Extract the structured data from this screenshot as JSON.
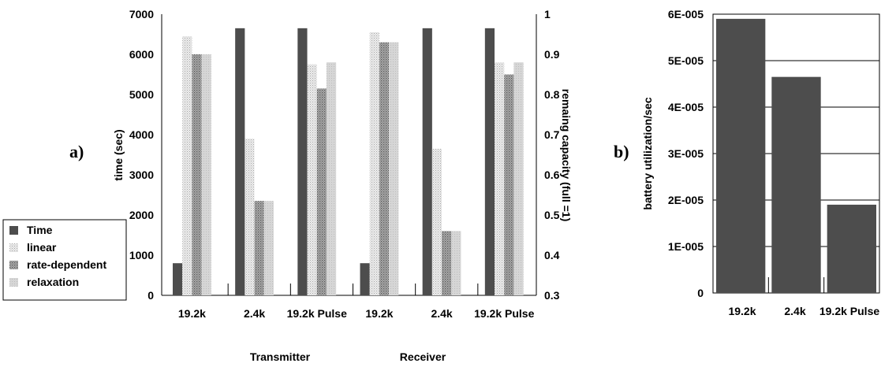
{
  "chart_data": [
    {
      "type": "bar",
      "panel_label": "a)",
      "categories": [
        "19.2k",
        "2.4k",
        "19.2k Pulse",
        "19.2k",
        "2.4k",
        "19.2k Pulse"
      ],
      "groups": [
        {
          "label": "Transmitter",
          "categories": [
            "19.2k",
            "2.4k",
            "19.2k Pulse"
          ]
        },
        {
          "label": "Receiver",
          "categories": [
            "19.2k",
            "2.4k",
            "19.2k Pulse"
          ]
        }
      ],
      "series": [
        {
          "name": "Time",
          "axis": "left",
          "values": [
            800,
            6650,
            6650,
            800,
            6650,
            6650
          ]
        },
        {
          "name": "linear",
          "axis": "right",
          "values": [
            0.945,
            0.69,
            0.875,
            0.955,
            0.665,
            0.88
          ]
        },
        {
          "name": "rate-dependent",
          "axis": "right",
          "values": [
            0.9,
            0.535,
            0.815,
            0.93,
            0.46,
            0.85
          ]
        },
        {
          "name": "relaxation",
          "axis": "right",
          "values": [
            0.9,
            0.535,
            0.88,
            0.93,
            0.46,
            0.88
          ]
        }
      ],
      "ylabel": "time (sec)",
      "ylim": [
        0,
        7000
      ],
      "yticks": [
        "0",
        "1000",
        "2000",
        "3000",
        "4000",
        "5000",
        "6000",
        "7000"
      ],
      "y2label": "remaing capacity (full =1)",
      "y2lim": [
        0.3,
        1.0
      ],
      "y2ticks": [
        "0.3",
        "0.4",
        "0.5",
        "0.6",
        "0.7",
        "0.8",
        "0.9",
        "1"
      ],
      "legend": "bottom-left",
      "grid": false
    },
    {
      "type": "bar",
      "panel_label": "b)",
      "categories": [
        "19.2k",
        "2.4k",
        "19.2k Pulse"
      ],
      "values": [
        5.9e-05,
        4.65e-05,
        1.9e-05
      ],
      "ylabel": "battery utilization/sec",
      "ylim": [
        0,
        6e-05
      ],
      "yticks": [
        "0",
        "1E-005",
        "2E-005",
        "3E-005",
        "4E-005",
        "5E-005",
        "6E-005"
      ],
      "grid": true
    }
  ],
  "colors": {
    "time": "#4d4d4d",
    "linear": "#dcdcdc",
    "rate_dependent": "#8c8c8c",
    "relaxation": "#cfcfcf"
  }
}
